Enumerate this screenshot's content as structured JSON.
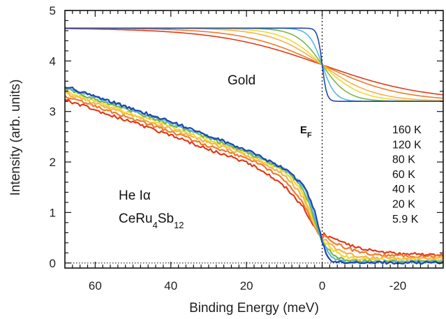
{
  "chart_data": {
    "type": "line",
    "xlabel": "Binding Energy (meV)",
    "ylabel": "Intensity (arb. units)",
    "xlim": [
      68,
      -32
    ],
    "ylim": [
      -0.1,
      5
    ],
    "x_reversed": true,
    "x_ticks": [
      60,
      40,
      20,
      0,
      -20
    ],
    "x_tick_labels": [
      "60",
      "40",
      "20",
      "0",
      "-20"
    ],
    "y_ticks": [
      0,
      1,
      2,
      3,
      4,
      5
    ],
    "y_tick_labels": [
      "0",
      "1",
      "2",
      "3",
      "4",
      "5"
    ],
    "fermi_line": {
      "x": 0,
      "label": "E",
      "label_sub": "F"
    },
    "baseline": {
      "y": 0,
      "style": "dotted"
    },
    "annotations": {
      "gold": "Gold",
      "source": "He Iα",
      "compound_prefix": "CeRu",
      "compound_sub1": "4",
      "compound_mid": "Sb",
      "compound_sub2": "12"
    },
    "legend_labels": [
      "160 K",
      "120 K",
      "80 K",
      "60 K",
      "40 K",
      "20 K",
      "5.9 K"
    ],
    "series": [
      {
        "name": "160 K",
        "color": "#e03a1c",
        "gold_width_meV": 13.8,
        "ce_tail": 0.16,
        "ce_edge_width": 6.0,
        "ce_offset": -0.22
      },
      {
        "name": "120 K",
        "color": "#f07a2a",
        "gold_width_meV": 10.3,
        "ce_tail": 0.13,
        "ce_edge_width": 4.6,
        "ce_offset": -0.15
      },
      {
        "name": "80 K",
        "color": "#f5b24a",
        "gold_width_meV": 6.9,
        "ce_tail": 0.09,
        "ce_edge_width": 3.2,
        "ce_offset": -0.09
      },
      {
        "name": "60 K",
        "color": "#f2d735",
        "gold_width_meV": 5.2,
        "ce_tail": 0.06,
        "ce_edge_width": 2.5,
        "ce_offset": -0.05
      },
      {
        "name": "40 K",
        "color": "#79b843",
        "gold_width_meV": 3.4,
        "ce_tail": 0.03,
        "ce_edge_width": 1.8,
        "ce_offset": 0.0
      },
      {
        "name": "20 K",
        "color": "#5bb5e5",
        "gold_width_meV": 1.7,
        "ce_tail": 0.02,
        "ce_edge_width": 1.3,
        "ce_offset": 0.03
      },
      {
        "name": "5.9 K",
        "color": "#1f47a8",
        "gold_width_meV": 0.6,
        "ce_tail": 0.01,
        "ce_edge_width": 0.9,
        "ce_offset": 0.05
      }
    ],
    "gold_model": {
      "high": 4.65,
      "low": 3.2
    },
    "ce_model": {
      "values_at": [
        68,
        60,
        40,
        20,
        10,
        5,
        0
      ],
      "base_values": [
        3.45,
        3.25,
        2.75,
        2.2,
        1.85,
        1.55,
        0.85
      ]
    }
  }
}
